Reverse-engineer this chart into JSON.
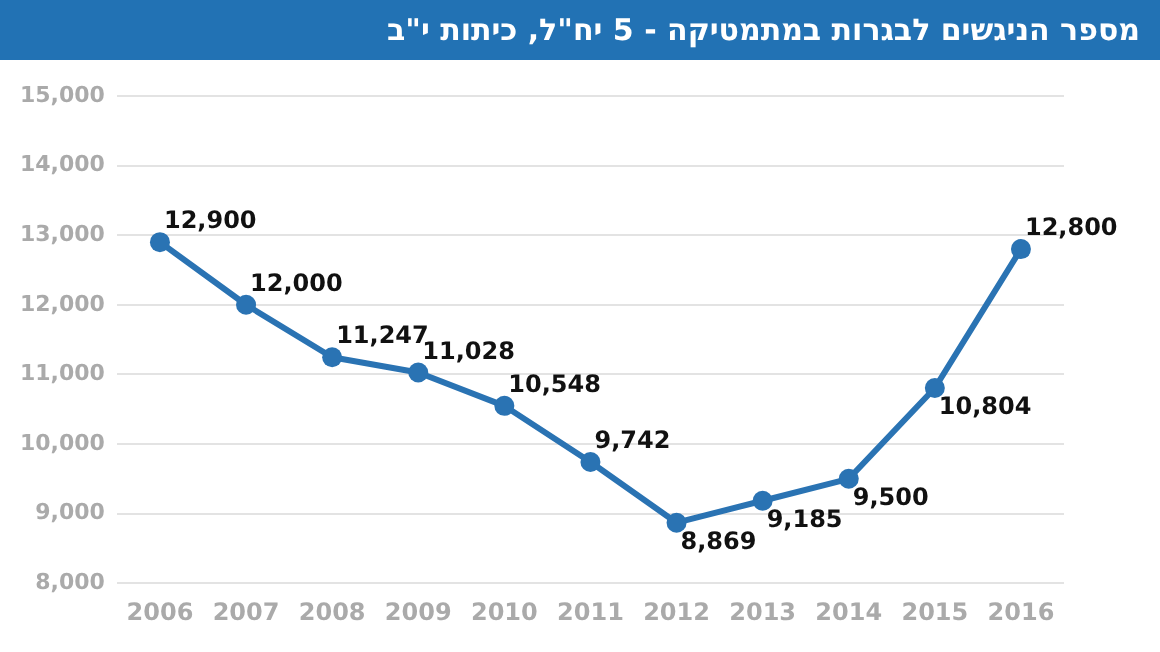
{
  "chart_data": {
    "type": "line",
    "title": "מספר הניגשים לבגרות במתמטיקה - 5 יח\"ל, כיתות י\"ב",
    "categories": [
      "2006",
      "2007",
      "2008",
      "2009",
      "2010",
      "2011",
      "2012",
      "2013",
      "2014",
      "2015",
      "2016"
    ],
    "series": [
      {
        "color": "#2a73b3",
        "values": [
          12900,
          12000,
          11247,
          11028,
          10548,
          9742,
          8869,
          9185,
          9500,
          10804,
          12800
        ],
        "value_labels": [
          "12,900",
          "12,000",
          "11,247",
          "11,028",
          "10,548",
          "9,742",
          "8,869",
          "9,185",
          "9,500",
          "10,804",
          "12,800"
        ]
      }
    ],
    "ylim": [
      8000,
      15000
    ],
    "yticks": [
      {
        "value": 8000,
        "label": "8,000"
      },
      {
        "value": 9000,
        "label": "9,000"
      },
      {
        "value": 10000,
        "label": "10,000"
      },
      {
        "value": 11000,
        "label": "11,000"
      },
      {
        "value": 12000,
        "label": "12,000"
      },
      {
        "value": 13000,
        "label": "13,000"
      },
      {
        "value": 14000,
        "label": "14,000"
      },
      {
        "value": 15000,
        "label": "15,000"
      }
    ],
    "grid": "y",
    "legend": false,
    "marker": "circle",
    "line_style": "solid"
  }
}
